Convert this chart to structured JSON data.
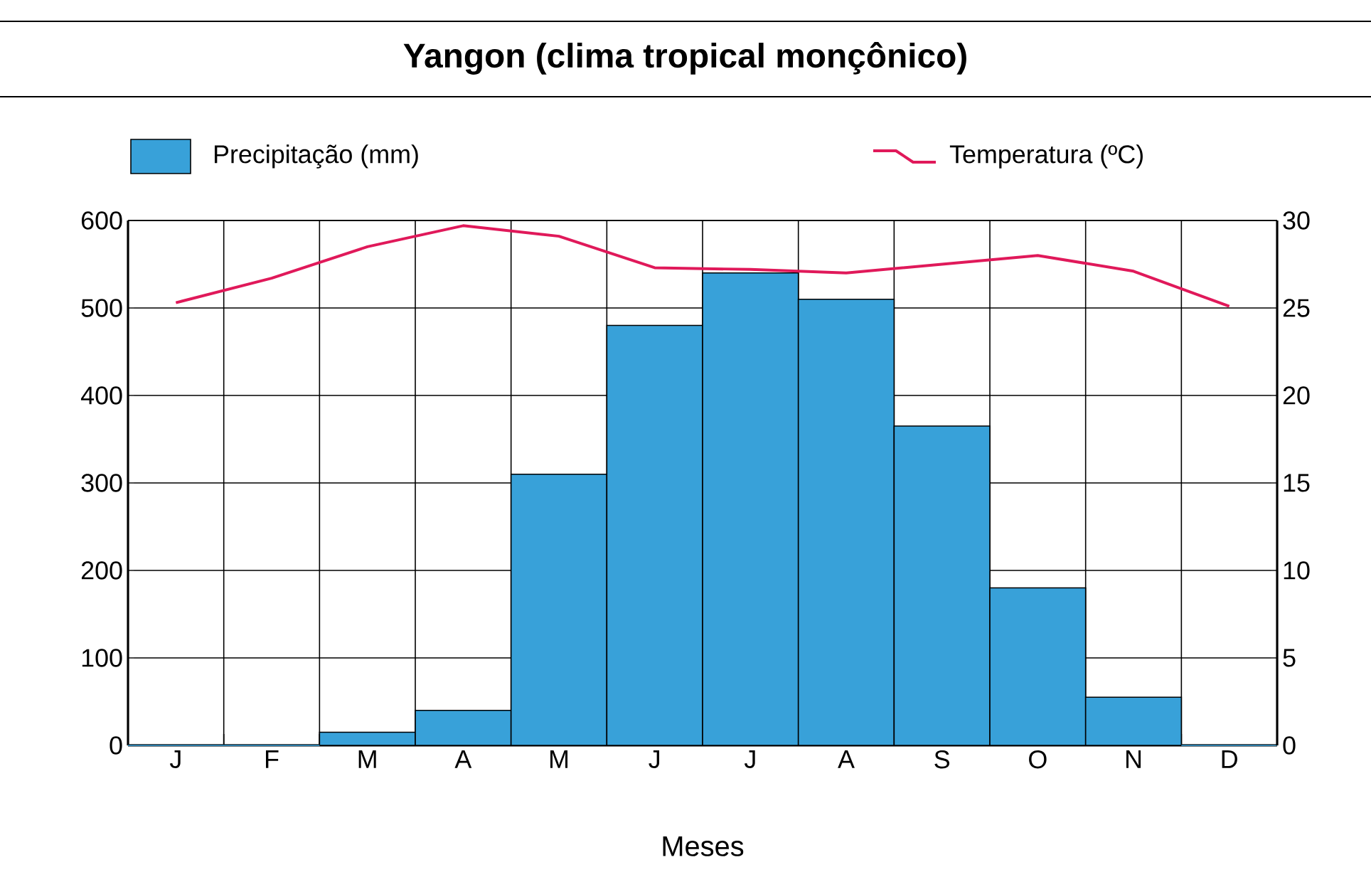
{
  "chart_data": {
    "type": "bar",
    "title": "Yangon (clima tropical monçônico)",
    "xlabel": "Meses",
    "categories": [
      "J",
      "F",
      "M",
      "A",
      "M",
      "J",
      "J",
      "A",
      "S",
      "O",
      "N",
      "D"
    ],
    "series": [
      {
        "name": "Precipitação (mm)",
        "color": "#38a1d9",
        "values": [
          0,
          0,
          15,
          40,
          310,
          480,
          540,
          510,
          365,
          180,
          55,
          0
        ]
      },
      {
        "name": "Temperatura (ºC)",
        "type": "line",
        "axis": "y2",
        "color": "#e0195a",
        "values": [
          25.3,
          26.7,
          28.5,
          29.7,
          29.1,
          27.3,
          27.2,
          27.0,
          27.5,
          28.0,
          27.1,
          25.1
        ]
      }
    ],
    "ylim": [
      0,
      600
    ],
    "yticks": [
      0,
      100,
      200,
      300,
      400,
      500,
      600
    ],
    "y2lim": [
      0,
      30
    ],
    "y2ticks": [
      0,
      5,
      10,
      15,
      20,
      25,
      30
    ],
    "grid": true,
    "legend": "top"
  }
}
